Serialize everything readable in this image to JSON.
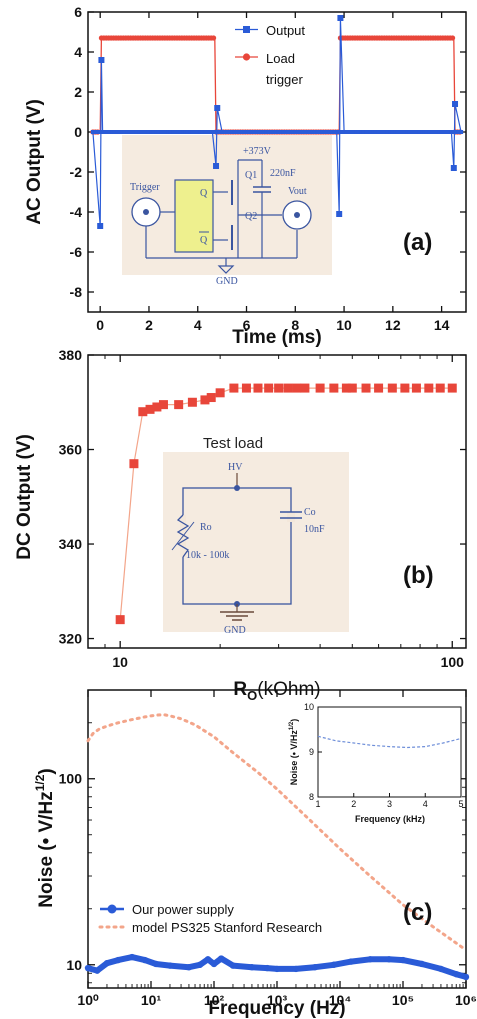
{
  "chart_data": [
    {
      "type": "line",
      "panel_label": "(a)",
      "xlabel": "Time (ms)",
      "ylabel": "AC Output (V)",
      "xlim": [
        -0.5,
        15
      ],
      "ylim": [
        -9,
        6
      ],
      "xticks": [
        0,
        2,
        4,
        6,
        8,
        10,
        12,
        14
      ],
      "yticks": [
        -8,
        -6,
        -4,
        -2,
        0,
        2,
        4,
        6
      ],
      "legend_position": "top-right",
      "series": [
        {
          "name": "Output",
          "color": "#2a5bd7",
          "marker": "square",
          "x": [
            -0.3,
            0.0,
            0.05,
            0.1,
            4.6,
            4.75,
            4.8,
            5.0,
            9.7,
            9.8,
            9.85,
            10.0,
            14.4,
            14.5,
            14.55,
            14.8
          ],
          "y": [
            0,
            -4.7,
            3.6,
            0,
            0,
            -1.7,
            1.2,
            0,
            0,
            -4.1,
            5.7,
            0,
            0,
            -1.8,
            1.4,
            0
          ]
        },
        {
          "name": "Load trigger",
          "color": "#e8463a",
          "marker": "circle",
          "x": [
            -0.3,
            0.0,
            0.05,
            4.7,
            4.75,
            9.8,
            9.85,
            14.5,
            14.55,
            14.8
          ],
          "y": [
            0,
            0,
            4.7,
            4.7,
            0,
            0,
            4.7,
            4.7,
            0,
            0
          ]
        }
      ],
      "inset_labels": {
        "trigger": "Trigger",
        "q": "Q",
        "qbar": "Q",
        "q1": "Q1",
        "q2": "Q2",
        "hv": "+373V",
        "cap": "220nF",
        "vout": "Vout",
        "gnd": "GND"
      }
    },
    {
      "type": "scatter",
      "panel_label": "(b)",
      "xlabel": "R",
      "xlabel_sub": "O",
      "xlabel_unit": "(kOhm)",
      "ylabel": "DC Output (V)",
      "xscale": "log",
      "xlim": [
        8,
        110
      ],
      "ylim": [
        318,
        380
      ],
      "xticks": [
        10,
        100
      ],
      "yticks": [
        320,
        340,
        360,
        380
      ],
      "series": [
        {
          "color": "#e8463a",
          "marker": "square",
          "x": [
            10,
            11,
            11.7,
            12.3,
            12.9,
            13.5,
            15,
            16.5,
            18,
            18.8,
            20,
            22,
            24,
            26,
            28,
            30,
            32,
            34,
            36,
            40,
            44,
            48,
            50,
            55,
            60,
            66,
            72,
            78,
            85,
            92,
            100
          ],
          "y": [
            324,
            357,
            368,
            368.5,
            369,
            369.5,
            369.5,
            370,
            370.5,
            371,
            372,
            373,
            373,
            373,
            373,
            373,
            373,
            373,
            373,
            373,
            373,
            373,
            373,
            373,
            373,
            373,
            373,
            373,
            373,
            373,
            373
          ]
        }
      ],
      "inset_labels": {
        "title": "Test load",
        "hv": "HV",
        "ro": "Ro",
        "range": "10k - 100k",
        "co": "Co",
        "co_value": "10nF",
        "gnd": "GND"
      }
    },
    {
      "type": "line",
      "panel_label": "(c)",
      "xlabel": "Frequency (Hz)",
      "ylabel": "Noise (• V/Hz",
      "ylabel_sup": "1/2",
      "ylabel_close": ")",
      "xscale": "log",
      "yscale": "log",
      "xlim": [
        1,
        1000000
      ],
      "ylim": [
        7.5,
        300
      ],
      "xticks": [
        "10⁰",
        "10¹",
        "10²",
        "10³",
        "10⁴",
        "10⁵",
        "10⁶"
      ],
      "xticks_value": [
        1,
        10,
        100,
        1000,
        10000,
        100000,
        1000000
      ],
      "yticks": [
        10,
        100
      ],
      "legend_position": "lower-left",
      "series": [
        {
          "name": "Our power supply",
          "color": "#2a5bd7",
          "style": "solid-markers",
          "x": [
            1,
            1.4,
            2,
            3,
            5,
            8,
            12,
            20,
            40,
            60,
            80,
            100,
            130,
            200,
            400,
            700,
            1000,
            2000,
            4000,
            8000,
            15000,
            30000,
            60000,
            100000,
            200000,
            400000,
            700000,
            1000000
          ],
          "y": [
            9.6,
            9.3,
            10.2,
            10.6,
            11,
            10.6,
            10.1,
            9.9,
            9.7,
            10.0,
            10.7,
            10.1,
            10.8,
            9.9,
            9.7,
            9.6,
            9.5,
            9.5,
            9.7,
            10.0,
            10.4,
            10.7,
            10.7,
            10.6,
            10.1,
            9.5,
            8.9,
            8.6
          ]
        },
        {
          "name": "model PS325 Stanford Research",
          "color": "#f3a58a",
          "style": "dotted",
          "x": [
            1,
            1.2,
            1.5,
            2,
            3,
            5,
            8,
            12,
            16,
            20,
            30,
            50,
            100,
            200,
            500,
            1000,
            3000,
            10000,
            30000,
            100000,
            300000,
            1000000
          ],
          "y": [
            160,
            175,
            185,
            192,
            200,
            208,
            215,
            220,
            221,
            218,
            210,
            195,
            168,
            138,
            108,
            88,
            62,
            42,
            30,
            21,
            16,
            12
          ]
        }
      ],
      "inset": {
        "xlabel": "Frequency (kHz)",
        "ylabel": "Noise (• V/Hz",
        "ylabel_sup": "1/2",
        "ylabel_close": ")",
        "xlim": [
          1,
          5
        ],
        "ylim": [
          8,
          10
        ],
        "xticks": [
          1,
          2,
          3,
          4,
          5
        ],
        "yticks": [
          8,
          9,
          10
        ],
        "series": [
          {
            "color": "#6f8fd9",
            "style": "dashed",
            "x": [
              1,
              1.5,
              2,
              2.5,
              3,
              3.5,
              4,
              4.5,
              5
            ],
            "y": [
              9.35,
              9.25,
              9.2,
              9.15,
              9.12,
              9.1,
              9.12,
              9.2,
              9.3
            ]
          }
        ]
      }
    }
  ]
}
